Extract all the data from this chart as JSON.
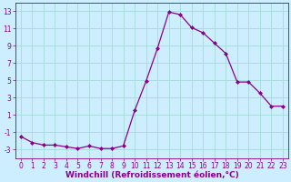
{
  "x": [
    0,
    1,
    2,
    3,
    4,
    5,
    6,
    7,
    8,
    9,
    10,
    11,
    12,
    13,
    14,
    15,
    16,
    17,
    18,
    19,
    20,
    21,
    22,
    23
  ],
  "y": [
    -1.5,
    -2.2,
    -2.5,
    -2.5,
    -2.7,
    -2.9,
    -2.6,
    -2.9,
    -2.9,
    -2.6,
    1.5,
    4.9,
    8.7,
    12.9,
    12.6,
    11.1,
    10.5,
    9.3,
    8.1,
    4.8,
    4.8,
    3.5,
    2.0,
    2.0
  ],
  "line_color": "#8B008B",
  "marker": "D",
  "marker_size": 2.0,
  "line_width": 0.9,
  "bg_color": "#cceeff",
  "grid_color": "#aadddd",
  "xlabel": "Windchill (Refroidissement éolien,°C)",
  "xlabel_color": "#8B008B",
  "tick_color": "#8B008B",
  "ylim": [
    -4,
    14
  ],
  "yticks": [
    -3,
    -1,
    1,
    3,
    5,
    7,
    9,
    11,
    13
  ],
  "xlim": [
    -0.5,
    23.5
  ],
  "xticks": [
    0,
    1,
    2,
    3,
    4,
    5,
    6,
    7,
    8,
    9,
    10,
    11,
    12,
    13,
    14,
    15,
    16,
    17,
    18,
    19,
    20,
    21,
    22,
    23
  ],
  "xtick_labels": [
    "0",
    "1",
    "2",
    "3",
    "4",
    "5",
    "6",
    "7",
    "8",
    "9",
    "10",
    "11",
    "12",
    "13",
    "14",
    "15",
    "16",
    "17",
    "18",
    "19",
    "20",
    "21",
    "22",
    "23"
  ],
  "font_size_label": 6.5,
  "font_size_tick": 5.5
}
